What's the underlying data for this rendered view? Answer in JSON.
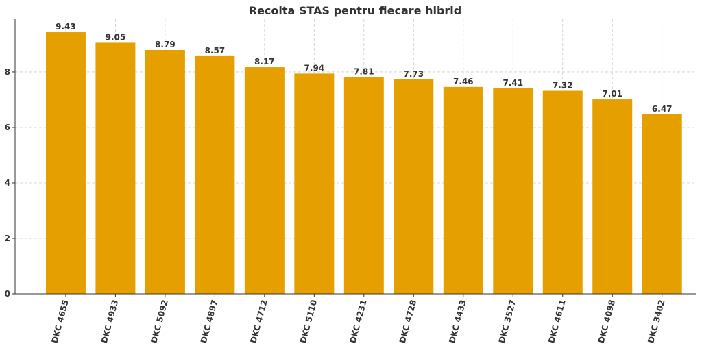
{
  "chart_data": {
    "type": "bar",
    "title": "Recolta STAS pentru fiecare hibrid",
    "categories": [
      "DKC 4655",
      "DKC 4933",
      "DKC 5092",
      "DKC 4897",
      "DKC 4712",
      "DKC 5110",
      "DKC 4231",
      "DKC 4728",
      "DKC 4433",
      "DKC 3527",
      "DKC 4611",
      "DKC 4098",
      "DKC 3402"
    ],
    "values": [
      9.43,
      9.05,
      8.79,
      8.57,
      8.17,
      7.94,
      7.81,
      7.73,
      7.46,
      7.41,
      7.32,
      7.01,
      6.47
    ],
    "color": "#e5a000",
    "ylim": [
      0,
      9.9
    ],
    "yticks": [
      0,
      2,
      4,
      6,
      8
    ],
    "grid": true
  }
}
